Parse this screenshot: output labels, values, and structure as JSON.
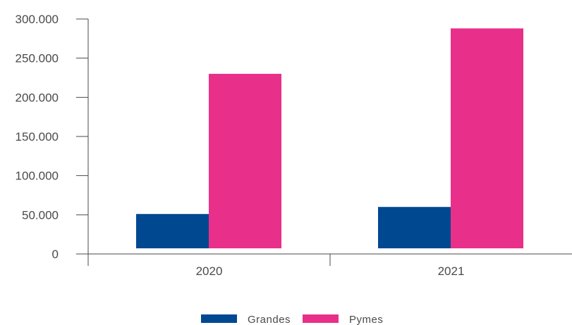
{
  "chart_data": {
    "type": "bar",
    "title": "",
    "xlabel": "",
    "ylabel": "",
    "categories": [
      "2020",
      "2021"
    ],
    "series": [
      {
        "name": "Grandes",
        "values": [
          51000,
          60000
        ],
        "color": "#004890"
      },
      {
        "name": "Pymes",
        "values": [
          230000,
          288000
        ],
        "color": "#E8308A"
      }
    ],
    "ylim": [
      0,
      300000
    ],
    "yticks": [
      0,
      50000,
      100000,
      150000,
      200000,
      250000,
      300000
    ],
    "ytick_labels": [
      "0",
      "50.000",
      "100.000",
      "150.000",
      "200.000",
      "250.000",
      "300.000"
    ],
    "grid": false,
    "legend_position": "bottom-center"
  }
}
